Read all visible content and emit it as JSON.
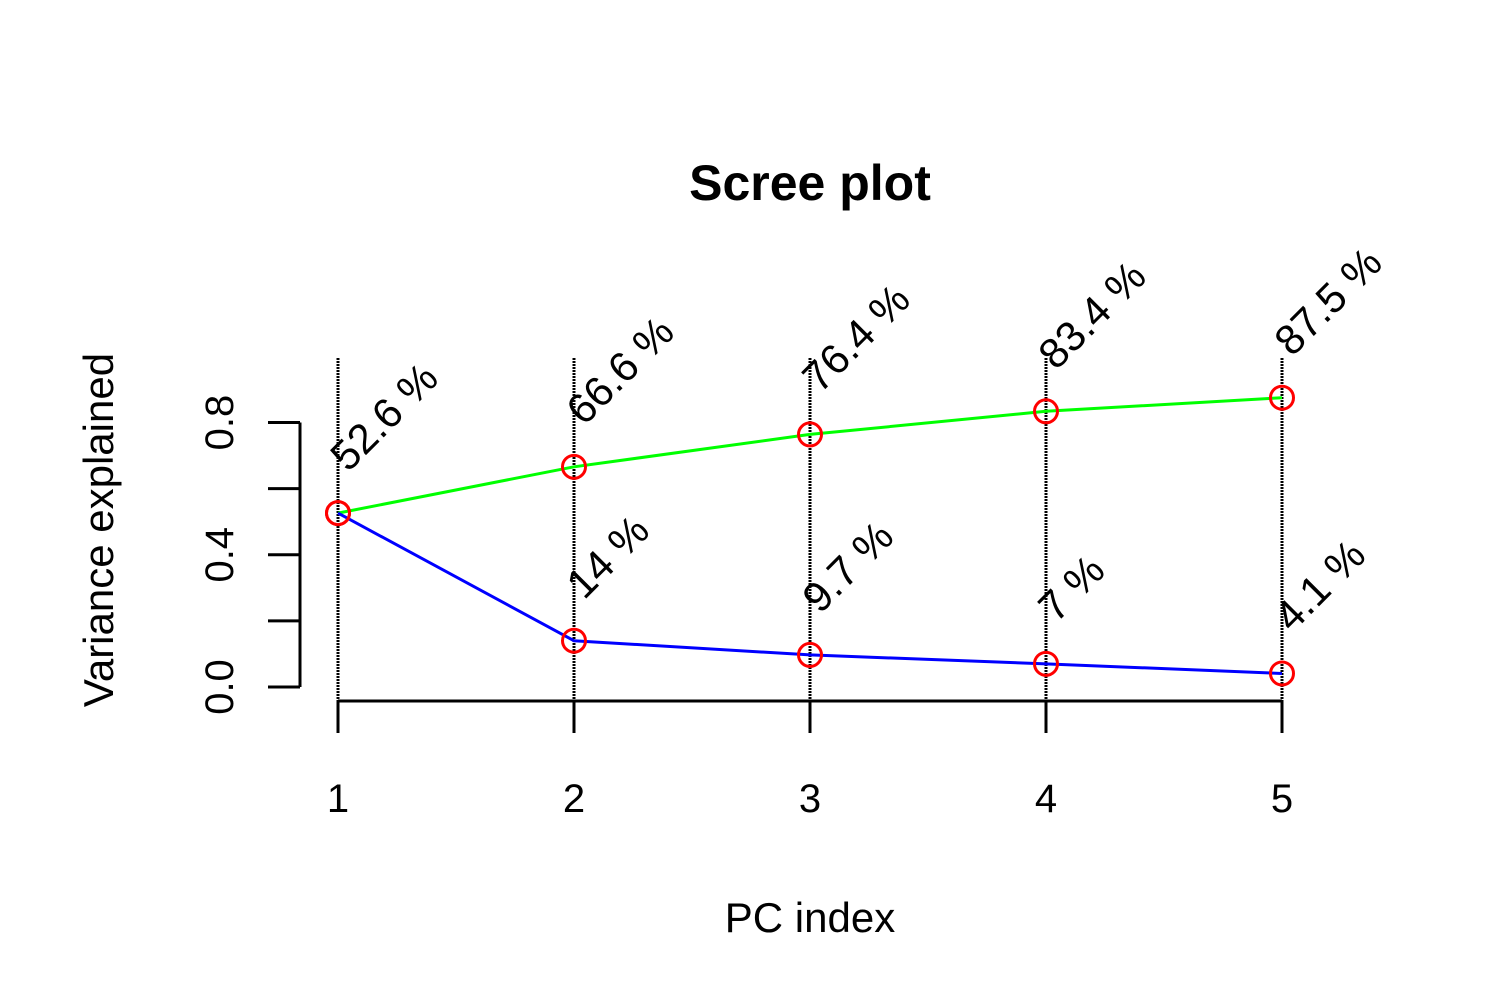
{
  "chart_data": {
    "type": "line",
    "title": "Scree plot",
    "xlabel": "PC index",
    "ylabel": "Variance explained",
    "x": [
      1,
      2,
      3,
      4,
      5
    ],
    "xlim": [
      1,
      5
    ],
    "ylim": [
      0,
      0.8
    ],
    "yticks": [
      "0.0",
      "0.4",
      "0.8"
    ],
    "ytick_values": [
      0.0,
      0.2,
      0.4,
      0.6,
      0.8
    ],
    "xtick_labels": [
      "1",
      "2",
      "3",
      "4",
      "5"
    ],
    "grid": "vertical lines at each PC",
    "series": [
      {
        "values": [
          0.526,
          0.666,
          0.764,
          0.834,
          0.875
        ],
        "labels": [
          "52.6 %",
          "66.6 %",
          "76.4 %",
          "83.4 %",
          "87.5 %"
        ],
        "color": "#00ff00"
      },
      {
        "values": [
          0.526,
          0.14,
          0.097,
          0.07,
          0.041
        ],
        "labels": [
          "",
          "14 %",
          "9.7 %",
          "7 %",
          "4.1 %"
        ],
        "color": "#0000ff"
      }
    ],
    "marker_color": "#ff0000"
  }
}
